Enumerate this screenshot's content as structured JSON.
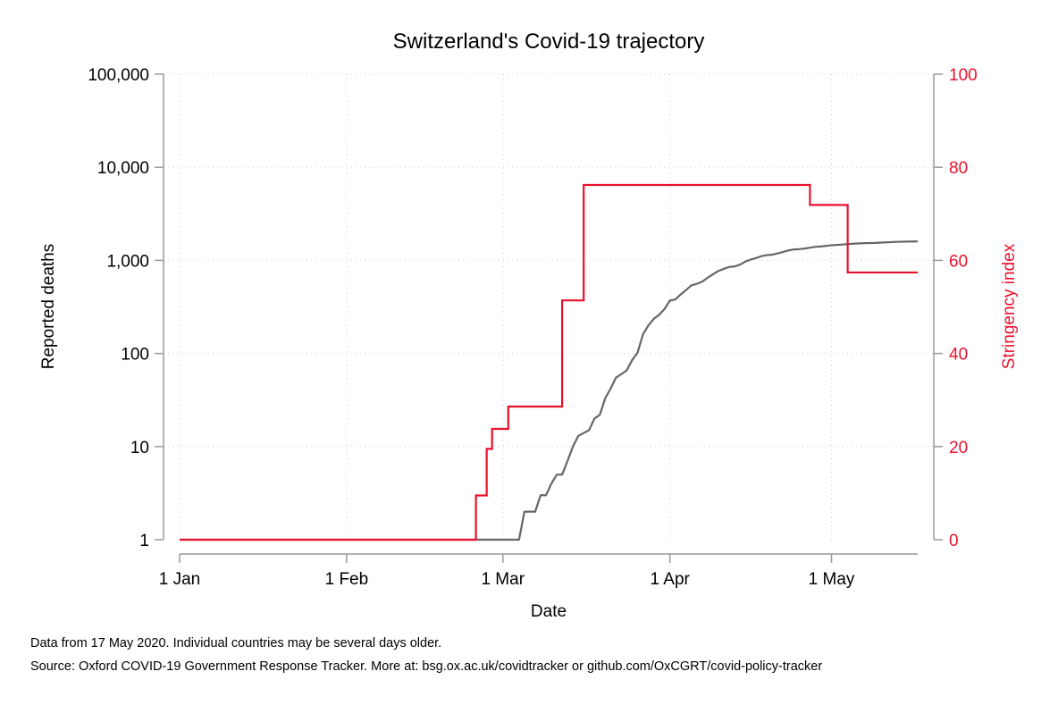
{
  "chart_data": {
    "type": "line",
    "title": "Switzerland's Covid-19 trajectory",
    "xlabel": "Date",
    "ylabel": "Reported deaths",
    "y2label": "Stringency index",
    "x_range": [
      "2020-01-01",
      "2020-05-17"
    ],
    "x_ticks": [
      {
        "date": "2020-01-01",
        "label": "1 Jan"
      },
      {
        "date": "2020-02-01",
        "label": "1 Feb"
      },
      {
        "date": "2020-03-01",
        "label": "1 Mar"
      },
      {
        "date": "2020-04-01",
        "label": "1 Apr"
      },
      {
        "date": "2020-05-01",
        "label": "1 May"
      }
    ],
    "y_scale": "log",
    "ylim": [
      1,
      100000
    ],
    "y_ticks": [
      {
        "value": 1,
        "label": "1"
      },
      {
        "value": 10,
        "label": "10"
      },
      {
        "value": 100,
        "label": "100"
      },
      {
        "value": 1000,
        "label": "1,000"
      },
      {
        "value": 10000,
        "label": "10,000"
      },
      {
        "value": 100000,
        "label": "100,000"
      }
    ],
    "y2lim": [
      0,
      100
    ],
    "y2_ticks": [
      {
        "value": 0,
        "label": "0"
      },
      {
        "value": 20,
        "label": "20"
      },
      {
        "value": 40,
        "label": "40"
      },
      {
        "value": 60,
        "label": "60"
      },
      {
        "value": 80,
        "label": "80"
      },
      {
        "value": 100,
        "label": "100"
      }
    ],
    "grid": true,
    "legend": "none",
    "series": [
      {
        "axis": "left",
        "color": "#666666",
        "points": [
          [
            "2020-01-01",
            1
          ],
          [
            "2020-03-04",
            1
          ],
          [
            "2020-03-05",
            2
          ],
          [
            "2020-03-06",
            2
          ],
          [
            "2020-03-07",
            2
          ],
          [
            "2020-03-08",
            3
          ],
          [
            "2020-03-09",
            3
          ],
          [
            "2020-03-10",
            4
          ],
          [
            "2020-03-11",
            5
          ],
          [
            "2020-03-12",
            5
          ],
          [
            "2020-03-13",
            7
          ],
          [
            "2020-03-14",
            10
          ],
          [
            "2020-03-15",
            13
          ],
          [
            "2020-03-16",
            14
          ],
          [
            "2020-03-17",
            15
          ],
          [
            "2020-03-18",
            20
          ],
          [
            "2020-03-19",
            22
          ],
          [
            "2020-03-20",
            33
          ],
          [
            "2020-03-21",
            42
          ],
          [
            "2020-03-22",
            55
          ],
          [
            "2020-03-23",
            60
          ],
          [
            "2020-03-24",
            66
          ],
          [
            "2020-03-25",
            85
          ],
          [
            "2020-03-26",
            102
          ],
          [
            "2020-03-27",
            160
          ],
          [
            "2020-03-28",
            200
          ],
          [
            "2020-03-29",
            235
          ],
          [
            "2020-03-30",
            260
          ],
          [
            "2020-03-31",
            300
          ],
          [
            "2020-04-01",
            370
          ],
          [
            "2020-04-02",
            380
          ],
          [
            "2020-04-03",
            430
          ],
          [
            "2020-04-04",
            480
          ],
          [
            "2020-04-05",
            540
          ],
          [
            "2020-04-06",
            560
          ],
          [
            "2020-04-07",
            590
          ],
          [
            "2020-04-08",
            650
          ],
          [
            "2020-04-09",
            710
          ],
          [
            "2020-04-10",
            770
          ],
          [
            "2020-04-11",
            810
          ],
          [
            "2020-04-12",
            850
          ],
          [
            "2020-04-13",
            860
          ],
          [
            "2020-04-14",
            900
          ],
          [
            "2020-04-15",
            970
          ],
          [
            "2020-04-16",
            1020
          ],
          [
            "2020-04-17",
            1060
          ],
          [
            "2020-04-18",
            1110
          ],
          [
            "2020-04-19",
            1140
          ],
          [
            "2020-04-20",
            1150
          ],
          [
            "2020-04-21",
            1190
          ],
          [
            "2020-04-22",
            1230
          ],
          [
            "2020-04-23",
            1280
          ],
          [
            "2020-04-24",
            1310
          ],
          [
            "2020-04-25",
            1320
          ],
          [
            "2020-04-26",
            1340
          ],
          [
            "2020-04-27",
            1370
          ],
          [
            "2020-04-28",
            1400
          ],
          [
            "2020-04-29",
            1410
          ],
          [
            "2020-04-30",
            1430
          ],
          [
            "2020-05-01",
            1450
          ],
          [
            "2020-05-03",
            1480
          ],
          [
            "2020-05-05",
            1510
          ],
          [
            "2020-05-07",
            1530
          ],
          [
            "2020-05-09",
            1540
          ],
          [
            "2020-05-11",
            1560
          ],
          [
            "2020-05-13",
            1580
          ],
          [
            "2020-05-15",
            1590
          ],
          [
            "2020-05-17",
            1600
          ]
        ]
      },
      {
        "axis": "right",
        "color": "#e8112d",
        "steps": [
          [
            "2020-01-01",
            0
          ],
          [
            "2020-02-25",
            9.5
          ],
          [
            "2020-02-27",
            19.5
          ],
          [
            "2020-02-28",
            23.8
          ],
          [
            "2020-03-02",
            28.6
          ],
          [
            "2020-03-12",
            51.4
          ],
          [
            "2020-03-16",
            76.2
          ],
          [
            "2020-04-27",
            71.9
          ],
          [
            "2020-05-04",
            57.4
          ],
          [
            "2020-05-17",
            57.4
          ]
        ]
      }
    ]
  },
  "notes": {
    "line1": "Data from 17 May 2020. Individual countries may be several days older.",
    "line2": "Source: Oxford COVID-19 Government Response Tracker. More at: bsg.ox.ac.uk/covidtracker or github.com/OxCGRT/covid-policy-tracker"
  }
}
